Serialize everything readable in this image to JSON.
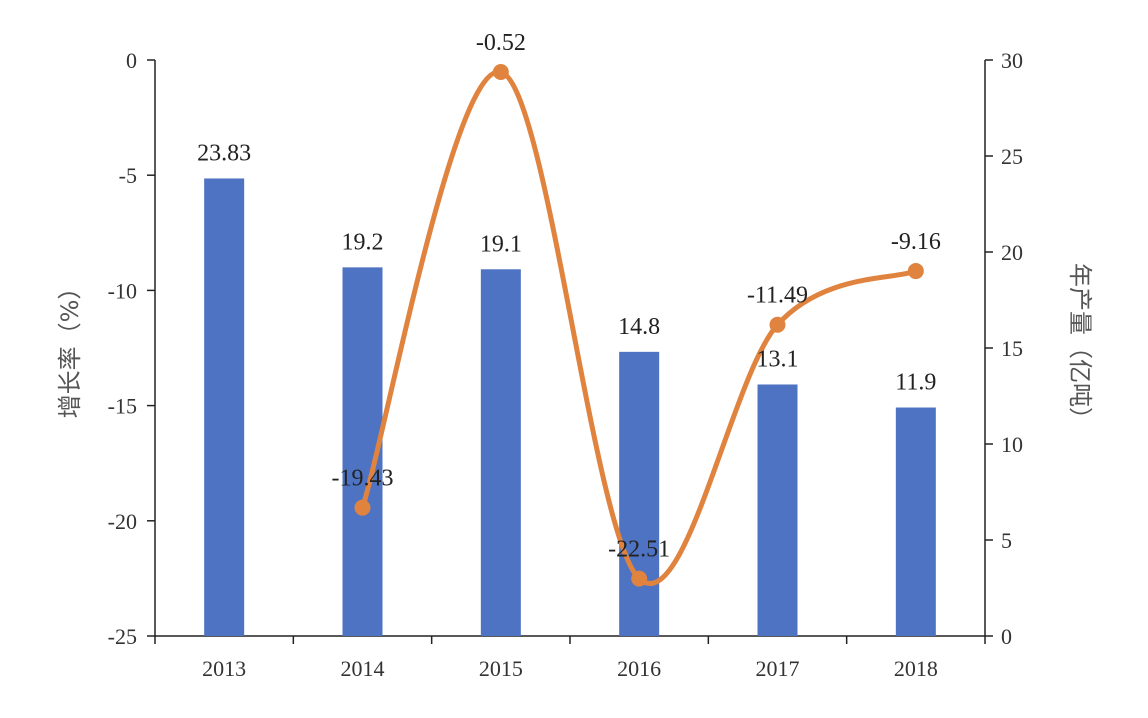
{
  "chart_data": {
    "type": "bar+line",
    "categories": [
      "2013",
      "2014",
      "2015",
      "2016",
      "2017",
      "2018"
    ],
    "bar_series": {
      "axis": "right",
      "color": "#4e73c2",
      "values": [
        23.83,
        19.2,
        19.1,
        14.8,
        13.1,
        11.9
      ],
      "labels": [
        "23.83",
        "19.2",
        "19.1",
        "14.8",
        "13.1",
        "11.9"
      ]
    },
    "line_series": {
      "axis": "left",
      "color": "#e0833f",
      "smooth": true,
      "values": [
        null,
        -19.43,
        -0.52,
        -22.51,
        -11.49,
        -9.16
      ],
      "labels": [
        "",
        "-19.43",
        "-0.52",
        "-22.51",
        "-11.49",
        "-9.16"
      ]
    },
    "y_left": {
      "title": "增长率（%）",
      "range": [
        -25,
        0
      ],
      "ticks": [
        "0",
        "-5",
        "-10",
        "-15",
        "-20",
        "-25"
      ]
    },
    "y_right": {
      "title": "年产量（亿吨）",
      "range": [
        0,
        30
      ],
      "ticks": [
        "30",
        "25",
        "20",
        "15",
        "10",
        "5",
        "0"
      ]
    },
    "grid": false,
    "legend": "none"
  }
}
